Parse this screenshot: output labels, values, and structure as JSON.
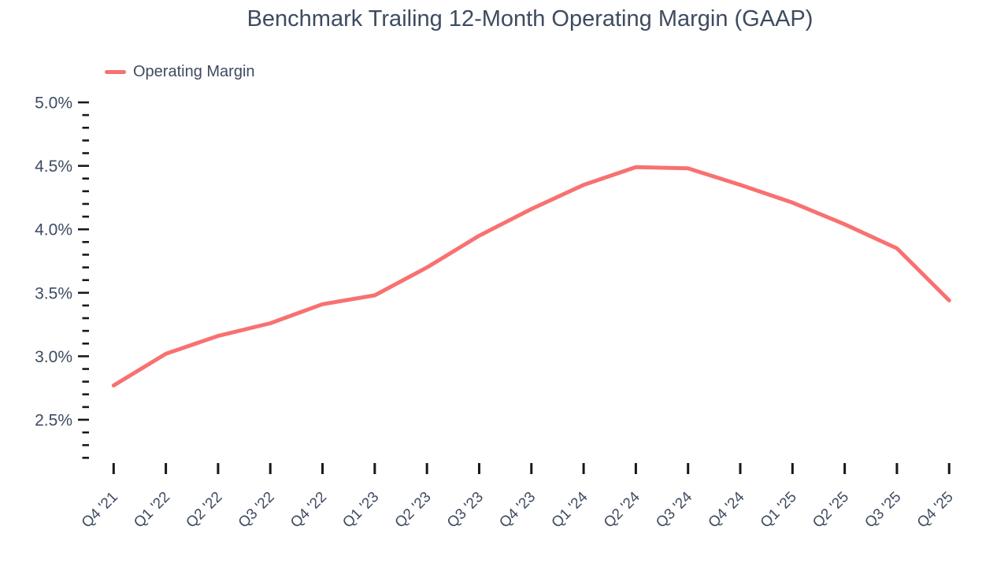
{
  "chart_data": {
    "type": "line",
    "title": "Benchmark Trailing 12-Month Operating Margin (GAAP)",
    "categories": [
      "Q4 '21",
      "Q1 '22",
      "Q2 '22",
      "Q3 '22",
      "Q4 '22",
      "Q1 '23",
      "Q2 '23",
      "Q3 '23",
      "Q4 '23",
      "Q1 '24",
      "Q2 '24",
      "Q3 '24",
      "Q4 '24",
      "Q1 '25",
      "Q2 '25",
      "Q3 '25",
      "Q4 '25"
    ],
    "series": [
      {
        "name": "Operating Margin",
        "values": [
          2.77,
          3.02,
          3.16,
          3.26,
          3.41,
          3.48,
          3.7,
          3.95,
          4.16,
          4.35,
          4.49,
          4.48,
          4.35,
          4.21,
          4.04,
          3.85,
          3.44
        ]
      }
    ],
    "y_unit": "%",
    "ylim": [
      2.2,
      5.0
    ],
    "ytick_step": 0.5,
    "yminor_step": 0.1,
    "yticks": [
      "5.0%",
      "4.5%",
      "4.0%",
      "3.5%",
      "3.0%",
      "2.5%"
    ],
    "xlabel": "",
    "ylabel": "",
    "grid": false,
    "legend_position": "top-left"
  },
  "colors": {
    "line": "#f87171",
    "text": "#3e4b60",
    "tick": "#15181e",
    "background": "#ffffff"
  }
}
